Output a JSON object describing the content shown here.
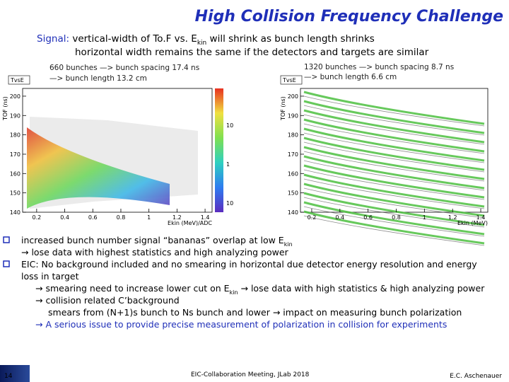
{
  "title": "High Collision Frequency Challenge",
  "signal": {
    "label": "Signal:",
    "line1a": "vertical-width of To.F vs. E",
    "line1sub": "kin",
    "line1b": "will shrink as bunch length shrinks",
    "line2": "horizontal width remains the same if the detectors and targets are similar"
  },
  "plots": [
    {
      "caption": [
        "660 bunches —> bunch spacing 17.4 ns",
        "—> bunch length 13.2 cm"
      ],
      "stat_label": "TvsE",
      "y_label": "TOF (ns)",
      "x_label": "Ekin (MeV)/ADC",
      "xlim": [
        0.1,
        1.45
      ],
      "ylim": [
        140,
        204
      ],
      "xticks": [
        0.2,
        0.4,
        0.6,
        0.8,
        1,
        1.2,
        1.4
      ],
      "yticks": [
        140,
        150,
        160,
        170,
        180,
        190,
        200
      ],
      "colorbar_labels": [
        "10",
        "1",
        "10"
      ]
    },
    {
      "caption": [
        "1320 bunches —> bunch spacing 8.7 ns",
        "—> bunch length 6.6 cm"
      ],
      "stat_label": "TvsE",
      "y_label": "TOF (ns)",
      "x_label": "Ekin (MeV)",
      "xlim": [
        0.12,
        1.45
      ],
      "ylim": [
        140,
        204
      ],
      "xticks": [
        0.2,
        0.4,
        0.6,
        0.8,
        1,
        1.2,
        1.4
      ],
      "yticks": [
        140,
        150,
        160,
        170,
        180,
        190,
        200
      ]
    }
  ],
  "bullets": [
    {
      "a": "increased bunch number signal “bananas” overlap at low E",
      "sub": "kin"
    },
    {
      "a": "→ lose data with highest statistics and high analyzing power"
    },
    {
      "a": "EIC: No background included and no smearing in horizontal due detector energy resolution and energy"
    },
    {
      "a": "loss in target"
    },
    {
      "a": "→ smearing need to increase lower cut on E",
      "sub": "kin",
      "b": " → lose data with high statistics & high analyzing power"
    },
    {
      "a": "→ collision related C’background"
    },
    {
      "a": "smears from (N+1)s bunch to Ns bunch and lower → impact on measuring bunch polarization"
    },
    {
      "a": "→ A serious issue to provide precise measurement of polarization in collision for experiments"
    }
  ],
  "footer": {
    "page": "14",
    "meeting": "EIC-Collaboration Meeting, JLab 2018",
    "author": "E.C. Aschenauer"
  }
}
